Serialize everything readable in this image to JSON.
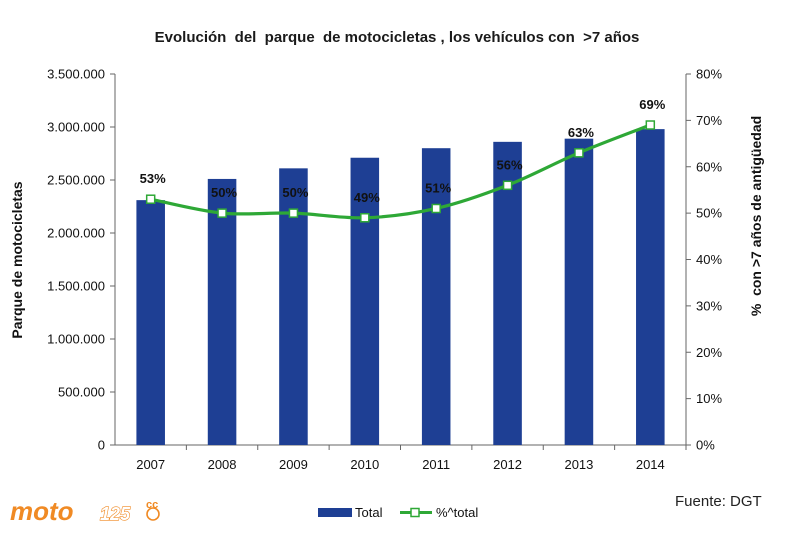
{
  "chart_data": {
    "type": "bar+line",
    "title": "Evolución  del  parque  de motocicletas , los vehículos con  >7 años",
    "categories": [
      "2007",
      "2008",
      "2009",
      "2010",
      "2011",
      "2012",
      "2013",
      "2014"
    ],
    "series": [
      {
        "name": "Total",
        "type": "bar",
        "axis": "left",
        "values": [
          2310000,
          2510000,
          2610000,
          2710000,
          2800000,
          2860000,
          2890000,
          2980000
        ]
      },
      {
        "name": "%^total",
        "type": "line",
        "axis": "right",
        "values": [
          53,
          50,
          50,
          49,
          51,
          56,
          63,
          69
        ],
        "labels": [
          "53%",
          "50%",
          "50%",
          "49%",
          "51%",
          "56%",
          "63%",
          "69%"
        ]
      }
    ],
    "ylabel": "Parque de motocicletas",
    "y2label": "%  con >7 años de antigüedad",
    "ylim": [
      0,
      3500000
    ],
    "y2lim": [
      0,
      80
    ],
    "yticks": [
      "0",
      "500.000",
      "1.000.000",
      "1.500.000",
      "2.000.000",
      "2.500.000",
      "3.000.000",
      "3.500.000"
    ],
    "y2ticks": [
      "0%",
      "10%",
      "20%",
      "30%",
      "40%",
      "50%",
      "60%",
      "70%",
      "80%"
    ],
    "legend": [
      "Total",
      "%^total"
    ],
    "legend_position": "bottom",
    "grid": false
  },
  "source_text": "Fuente: DGT",
  "logo": {
    "text": "moto",
    "number": "125",
    "suffix": "cc"
  },
  "colors": {
    "bar": "#1e3f94",
    "line": "#2ea836",
    "marker_fill": "#ffffff",
    "axis": "#666666",
    "logo": "#f08a24"
  }
}
